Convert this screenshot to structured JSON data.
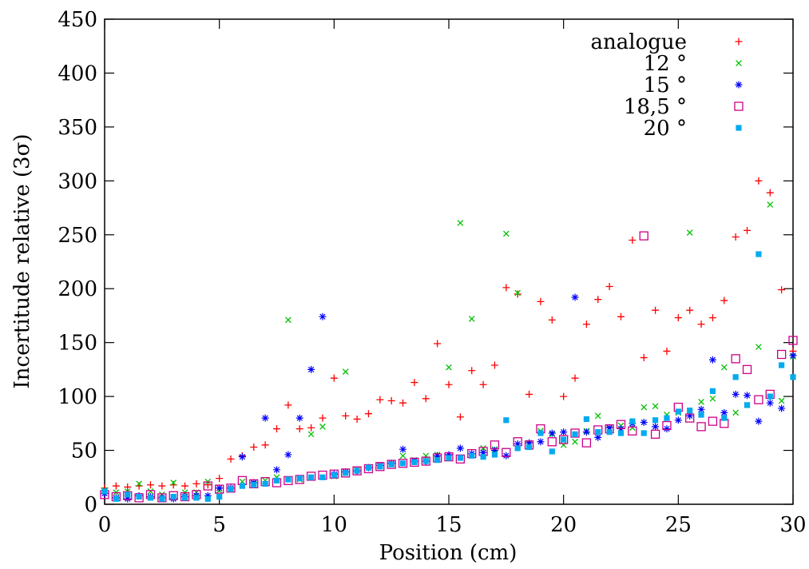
{
  "chart_data": {
    "type": "scatter",
    "title": "",
    "xlabel": "Position (cm)",
    "ylabel": "Incertitude relative (3σ)",
    "xlim": [
      0,
      30
    ],
    "ylim": [
      0,
      450
    ],
    "xticks": [
      0,
      5,
      10,
      15,
      20,
      25,
      30
    ],
    "yticks": [
      0,
      50,
      100,
      150,
      200,
      250,
      300,
      350,
      400,
      450
    ],
    "grid": false,
    "legend_position": "top-right",
    "series": [
      {
        "name": "analogue",
        "marker": "plus",
        "color": "#ff0000",
        "x": [
          0,
          0.5,
          1,
          1.5,
          2,
          2.5,
          3,
          3.5,
          4,
          4.5,
          5,
          5.5,
          6,
          6.5,
          7,
          7.5,
          8,
          8.5,
          9,
          9.5,
          10,
          10.5,
          11,
          11.5,
          12,
          12.5,
          13,
          13.5,
          14,
          14.5,
          15,
          15.5,
          16,
          16.5,
          17,
          17.5,
          18,
          18.5,
          19,
          19.5,
          20,
          20.5,
          21,
          21.5,
          22,
          22.5,
          23,
          23.5,
          24,
          24.5,
          25,
          25.5,
          26,
          26.5,
          27,
          27.5,
          28,
          28.5,
          29,
          29.5,
          30
        ],
        "y": [
          15,
          17,
          16,
          17,
          18,
          17,
          18,
          17,
          19,
          18,
          24,
          42,
          45,
          53,
          55,
          70,
          92,
          70,
          71,
          80,
          117,
          82,
          79,
          84,
          97,
          96,
          94,
          113,
          98,
          149,
          111,
          81,
          124,
          111,
          129,
          201,
          195,
          102,
          188,
          171,
          100,
          117,
          167,
          190,
          202,
          174,
          245,
          136,
          180,
          142,
          173,
          180,
          167,
          173,
          189,
          248,
          254,
          300,
          289,
          199,
          142
        ]
      },
      {
        "name": "12 °",
        "marker": "cross",
        "color": "#00c000",
        "x": [
          0,
          0.5,
          1,
          1.5,
          2,
          2.5,
          3,
          3.5,
          4,
          4.5,
          5,
          5.5,
          6,
          6.5,
          7,
          7.5,
          8,
          8.5,
          9,
          9.5,
          10,
          10.5,
          11,
          11.5,
          12,
          12.5,
          13,
          13.5,
          14,
          14.5,
          15,
          15.5,
          16,
          16.5,
          17,
          17.5,
          18,
          18.5,
          19,
          19.5,
          20,
          20.5,
          21,
          21.5,
          22,
          22.5,
          23,
          23.5,
          24,
          24.5,
          25,
          25.5,
          26,
          26.5,
          27,
          27.5,
          28,
          28.5,
          29,
          29.5,
          30
        ],
        "y": [
          13,
          11,
          12,
          19,
          12,
          9,
          20,
          11,
          11,
          21,
          13,
          15,
          21,
          19,
          22,
          25,
          171,
          23,
          65,
          72,
          26,
          123,
          32,
          34,
          36,
          37,
          45,
          41,
          45,
          46,
          127,
          261,
          172,
          52,
          51,
          251,
          196,
          56,
          68,
          65,
          55,
          58,
          68,
          82,
          70,
          73,
          71,
          90,
          91,
          83,
          85,
          252,
          95,
          98,
          127,
          85,
          92,
          146,
          278,
          96,
          137
        ]
      },
      {
        "name": "15 °",
        "marker": "star",
        "color": "#0000ff",
        "x": [
          0,
          0.5,
          1,
          1.5,
          2,
          2.5,
          3,
          3.5,
          4,
          4.5,
          5,
          5.5,
          6,
          6.5,
          7,
          7.5,
          8,
          8.5,
          9,
          9.5,
          10,
          10.5,
          11,
          11.5,
          12,
          12.5,
          13,
          13.5,
          14,
          14.5,
          15,
          15.5,
          16,
          16.5,
          17,
          17.5,
          18,
          18.5,
          19,
          19.5,
          20,
          20.5,
          21,
          21.5,
          22,
          22.5,
          23,
          23.5,
          24,
          24.5,
          25,
          25.5,
          26,
          26.5,
          27,
          27.5,
          28,
          28.5,
          29,
          29.5,
          30
        ],
        "y": [
          10,
          6,
          5,
          8,
          7,
          6,
          5,
          7,
          8,
          8,
          15,
          15,
          44,
          20,
          80,
          32,
          46,
          80,
          125,
          174,
          28,
          30,
          31,
          34,
          36,
          38,
          51,
          40,
          40,
          45,
          46,
          52,
          47,
          48,
          50,
          45,
          56,
          57,
          58,
          66,
          67,
          192,
          67,
          62,
          71,
          70,
          75,
          76,
          72,
          70,
          78,
          82,
          88,
          134,
          85,
          102,
          101,
          77,
          94,
          89,
          138
        ]
      },
      {
        "name": "18,5 °",
        "marker": "open-square",
        "color": "#cc0088",
        "x": [
          0,
          0.5,
          1,
          1.5,
          2,
          2.5,
          3,
          3.5,
          4,
          4.5,
          5,
          5.5,
          6,
          6.5,
          7,
          7.5,
          8,
          8.5,
          9,
          9.5,
          10,
          10.5,
          11,
          11.5,
          12,
          12.5,
          13,
          13.5,
          14,
          14.5,
          15,
          15.5,
          16,
          16.5,
          17,
          17.5,
          18,
          18.5,
          19,
          19.5,
          20,
          20.5,
          21,
          21.5,
          22,
          22.5,
          23,
          23.5,
          24,
          24.5,
          25,
          25.5,
          26,
          26.5,
          27,
          27.5,
          28,
          28.5,
          29,
          29.5,
          30
        ],
        "y": [
          9,
          7,
          8,
          6,
          9,
          6,
          8,
          7,
          9,
          17,
          14,
          15,
          22,
          19,
          21,
          20,
          22,
          23,
          26,
          27,
          28,
          29,
          31,
          33,
          35,
          37,
          38,
          39,
          40,
          43,
          44,
          42,
          47,
          49,
          55,
          48,
          58,
          55,
          70,
          58,
          60,
          66,
          57,
          69,
          70,
          74,
          68,
          249,
          65,
          73,
          90,
          80,
          72,
          77,
          75,
          135,
          125,
          97,
          102,
          139,
          152
        ]
      },
      {
        "name": "20 °",
        "marker": "filled-square",
        "color": "#00aaee",
        "x": [
          0,
          0.5,
          1,
          1.5,
          2,
          2.5,
          3,
          3.5,
          4,
          4.5,
          5,
          5.5,
          6,
          6.5,
          7,
          7.5,
          8,
          8.5,
          9,
          9.5,
          10,
          10.5,
          11,
          11.5,
          12,
          12.5,
          13,
          13.5,
          14,
          14.5,
          15,
          15.5,
          16,
          16.5,
          17,
          17.5,
          18,
          18.5,
          19,
          19.5,
          20,
          20.5,
          21,
          21.5,
          22,
          22.5,
          23,
          23.5,
          24,
          24.5,
          25,
          25.5,
          26,
          26.5,
          27,
          27.5,
          28,
          28.5,
          29,
          29.5,
          30
        ],
        "y": [
          12,
          5,
          9,
          7,
          6,
          5,
          7,
          6,
          6,
          5,
          7,
          14,
          17,
          18,
          19,
          22,
          23,
          24,
          25,
          25,
          27,
          29,
          31,
          34,
          35,
          37,
          38,
          39,
          40,
          41,
          43,
          43,
          45,
          44,
          46,
          78,
          52,
          53,
          66,
          49,
          60,
          65,
          79,
          67,
          67,
          66,
          77,
          66,
          78,
          80,
          86,
          87,
          83,
          105,
          80,
          118,
          92,
          232,
          100,
          129,
          118
        ]
      }
    ]
  }
}
